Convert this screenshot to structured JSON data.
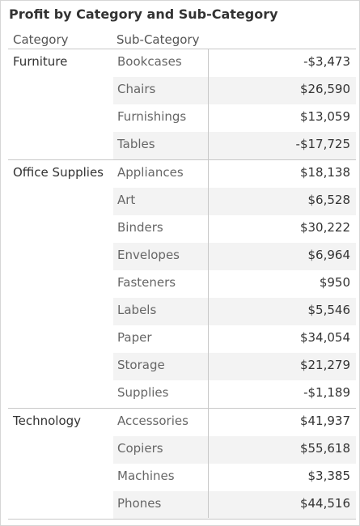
{
  "title": "Profit by Category and Sub-Category",
  "headers": {
    "category": "Category",
    "sub_category": "Sub-Category"
  },
  "chart_data": {
    "type": "table",
    "title": "Profit by Category and Sub-Category",
    "columns": [
      "Category",
      "Sub-Category",
      ""
    ],
    "groups": [
      {
        "category": "Furniture",
        "rows": [
          {
            "sub": "Bookcases",
            "value": "-$3,473"
          },
          {
            "sub": "Chairs",
            "value": "$26,590"
          },
          {
            "sub": "Furnishings",
            "value": "$13,059"
          },
          {
            "sub": "Tables",
            "value": "-$17,725"
          }
        ]
      },
      {
        "category": "Office Supplies",
        "rows": [
          {
            "sub": "Appliances",
            "value": "$18,138"
          },
          {
            "sub": "Art",
            "value": "$6,528"
          },
          {
            "sub": "Binders",
            "value": "$30,222"
          },
          {
            "sub": "Envelopes",
            "value": "$6,964"
          },
          {
            "sub": "Fasteners",
            "value": "$950"
          },
          {
            "sub": "Labels",
            "value": "$5,546"
          },
          {
            "sub": "Paper",
            "value": "$34,054"
          },
          {
            "sub": "Storage",
            "value": "$21,279"
          },
          {
            "sub": "Supplies",
            "value": "-$1,189"
          }
        ]
      },
      {
        "category": "Technology",
        "rows": [
          {
            "sub": "Accessories",
            "value": "$41,937"
          },
          {
            "sub": "Copiers",
            "value": "$55,618"
          },
          {
            "sub": "Machines",
            "value": "$3,385"
          },
          {
            "sub": "Phones",
            "value": "$44,516"
          }
        ]
      }
    ]
  }
}
